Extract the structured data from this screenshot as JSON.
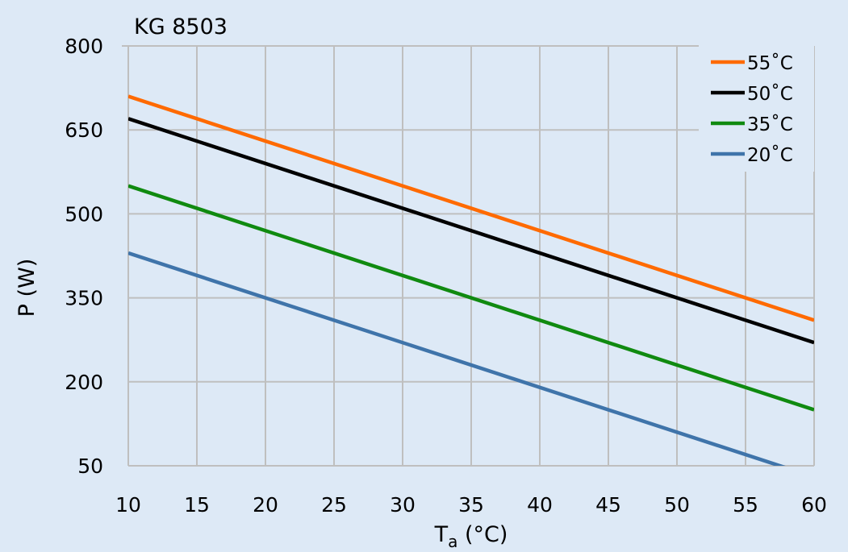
{
  "chart_data": {
    "type": "line",
    "title": "KG 8503",
    "xlabel": "T",
    "xlabel_sub": "a",
    "xlabel_unit": " (°C)",
    "ylabel": "P (W)",
    "xlim": [
      10,
      60
    ],
    "ylim": [
      50,
      800
    ],
    "xticks": [
      10,
      15,
      20,
      25,
      30,
      35,
      40,
      45,
      50,
      55,
      60
    ],
    "yticks": [
      50,
      200,
      350,
      500,
      650,
      800
    ],
    "grid": true,
    "legend_position": "top-right",
    "x": [
      10,
      60
    ],
    "series": [
      {
        "name": "55˚C",
        "color": "#ff6a00",
        "values": [
          710,
          310
        ]
      },
      {
        "name": "50˚C",
        "color": "#000000",
        "values": [
          670,
          270
        ]
      },
      {
        "name": "35˚C",
        "color": "#108a10",
        "values": [
          550,
          150
        ]
      },
      {
        "name": "20˚C",
        "color": "#3f74aa",
        "values": [
          430,
          30
        ]
      }
    ]
  }
}
